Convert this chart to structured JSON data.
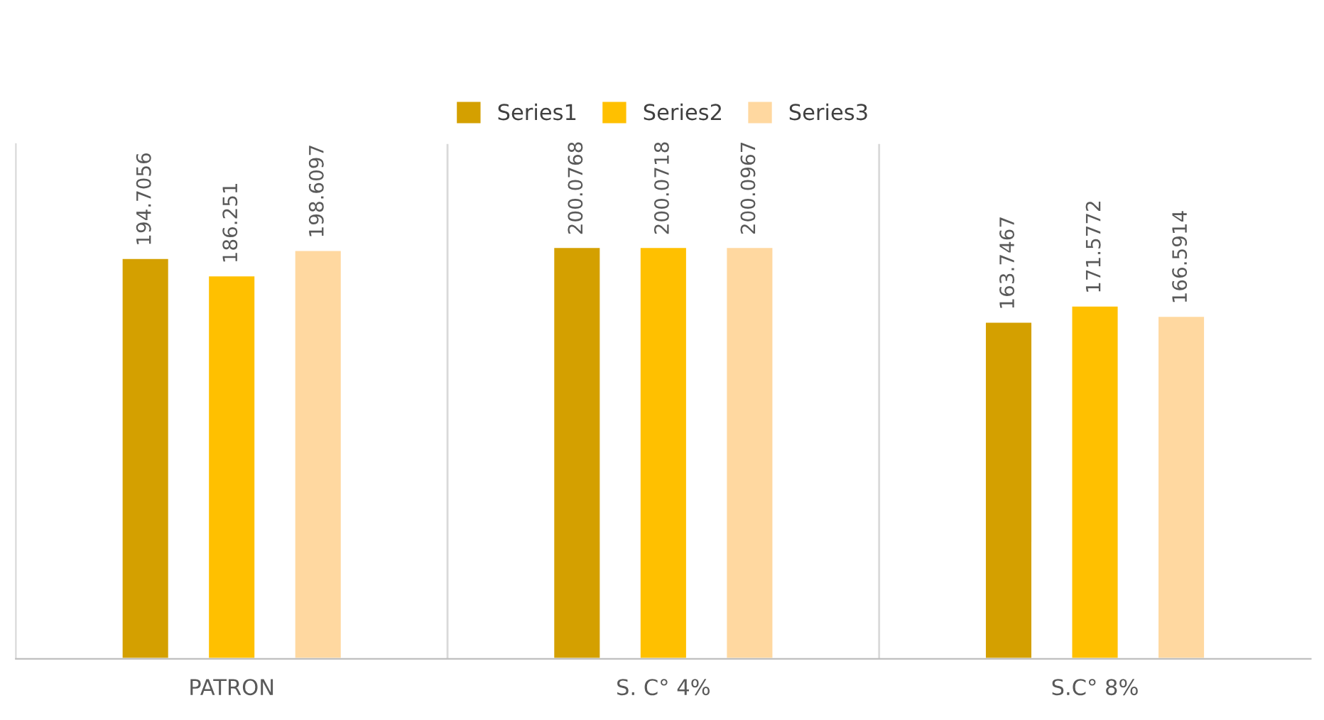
{
  "chart_data": {
    "type": "bar",
    "categories": [
      "PATRON",
      "S. C° 4%",
      "S.C° 8%"
    ],
    "series": [
      {
        "name": "Series1",
        "color": "#d4a000",
        "values": [
          194.7056,
          200.0768,
          163.7467
        ]
      },
      {
        "name": "Series2",
        "color": "#ffc000",
        "values": [
          186.251,
          200.0718,
          171.5772
        ]
      },
      {
        "name": "Series3",
        "color": "#ffd8a0",
        "values": [
          198.6097,
          200.0967,
          166.5914
        ]
      }
    ],
    "data_labels": true,
    "legend": "top",
    "grid": "x",
    "tick_labels": "x"
  }
}
